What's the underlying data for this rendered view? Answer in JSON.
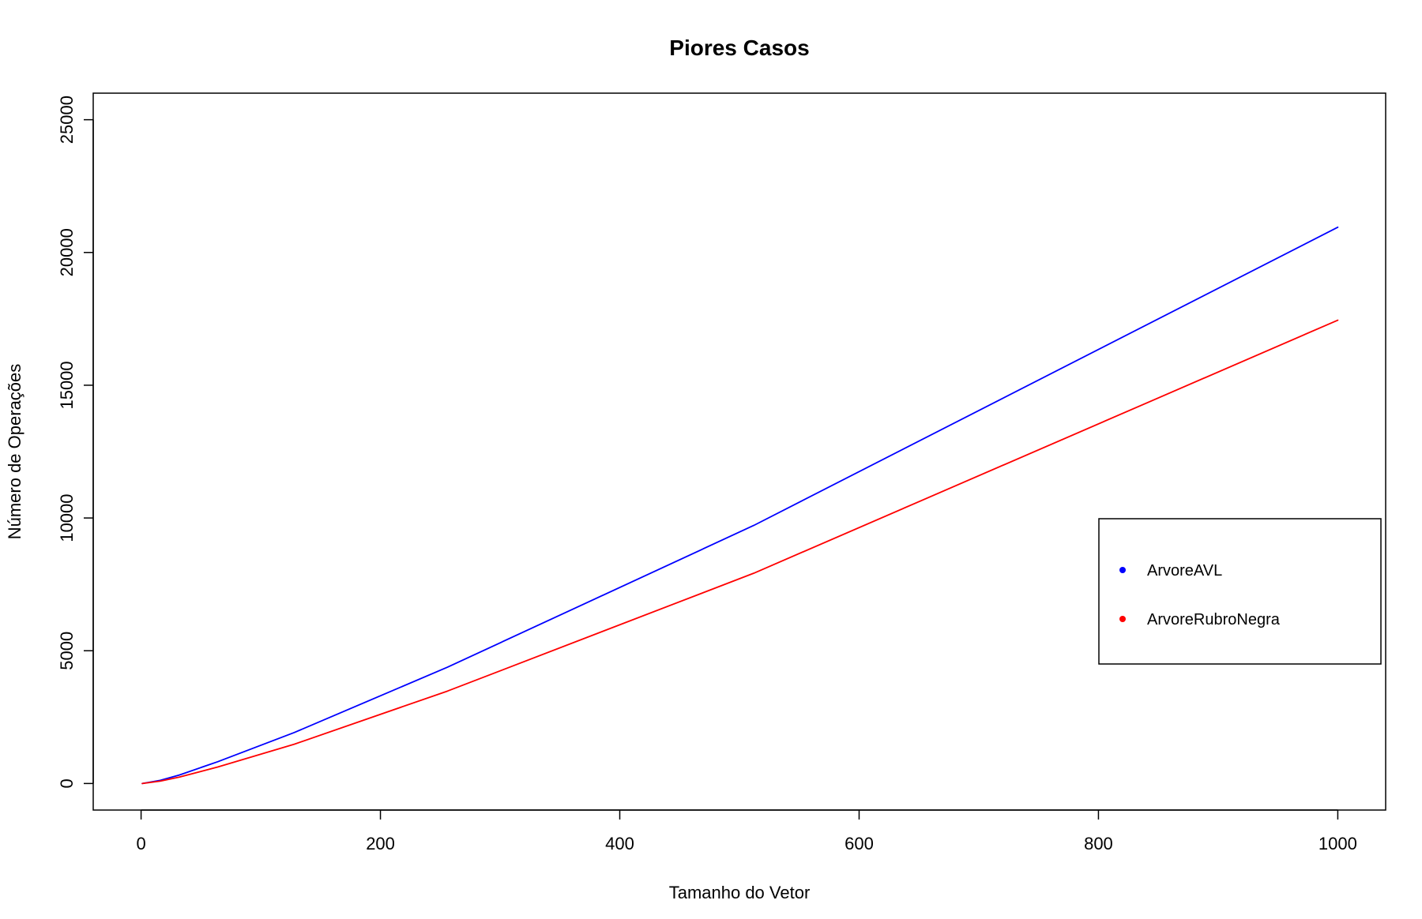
{
  "chart_data": {
    "type": "line",
    "title": "Piores Casos",
    "xlabel": "Tamanho do Vetor",
    "ylabel": "Número de Operações",
    "xlim": [
      -40,
      1040
    ],
    "ylim": [
      -1000,
      26000
    ],
    "xticks": [
      0,
      200,
      400,
      600,
      800,
      1000
    ],
    "yticks": [
      0,
      5000,
      10000,
      15000,
      20000,
      25000
    ],
    "grid": false,
    "legend_position": "right",
    "legend_marker": "dot",
    "series": [
      {
        "name": "ArvoreAVL",
        "color": "#0000ff",
        "x": [
          1,
          16,
          32,
          64,
          128,
          256,
          512,
          1000
        ],
        "y": [
          0,
          120,
          320,
          820,
          1920,
          4380,
          9720,
          20950
        ]
      },
      {
        "name": "ArvoreRubroNegra",
        "color": "#ff0000",
        "x": [
          1,
          16,
          32,
          64,
          128,
          256,
          512,
          1000
        ],
        "y": [
          0,
          90,
          240,
          620,
          1480,
          3480,
          7920,
          17450
        ]
      }
    ]
  }
}
